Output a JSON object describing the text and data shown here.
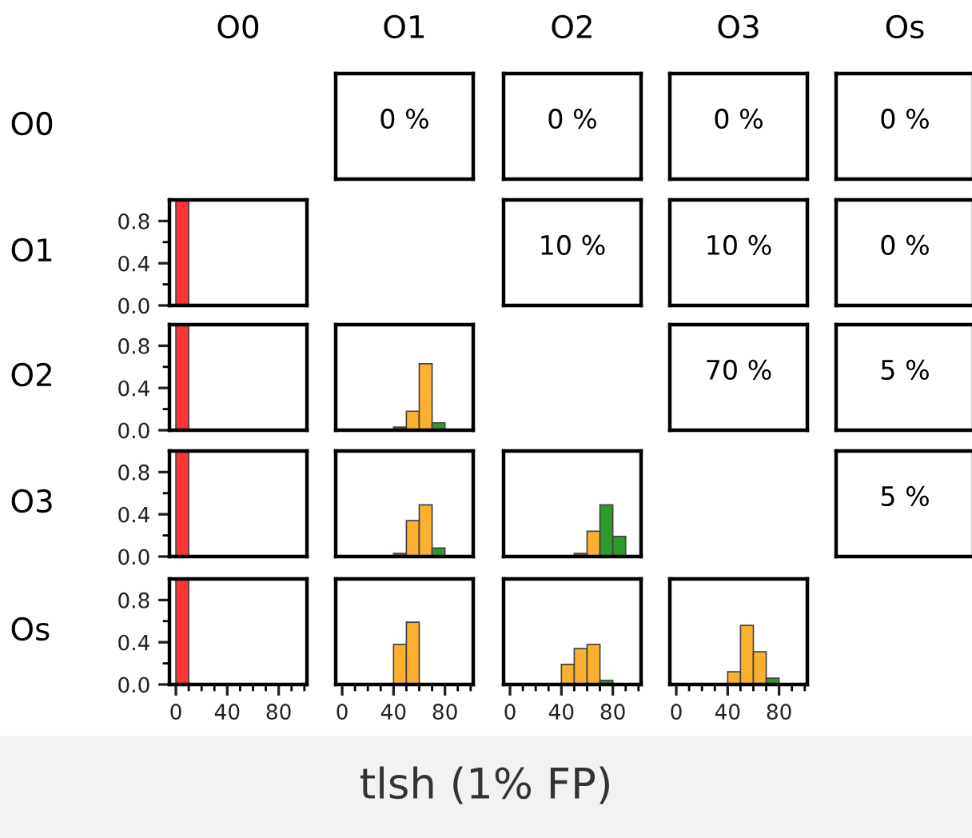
{
  "chart_data": [
    {
      "type": "other",
      "title": "O0",
      "ylabel": "O0"
    },
    {
      "type": "other",
      "title": "O1",
      "annotations": [
        "0 %"
      ]
    },
    {
      "type": "other",
      "title": "O2",
      "annotations": [
        "0 %"
      ]
    },
    {
      "type": "other",
      "title": "O3",
      "annotations": [
        "0 %"
      ]
    },
    {
      "type": "other",
      "title": "Os",
      "annotations": [
        "0 %"
      ]
    },
    {
      "type": "histogram",
      "ylabel": "O1",
      "bins": [
        0,
        10
      ],
      "values": [
        1.0
      ],
      "colors": [
        "#ff3535"
      ],
      "xlim": [
        -5,
        102
      ],
      "ylim": [
        0,
        1.0
      ],
      "yticks": [
        {
          "value": 0,
          "label": "0.0"
        },
        {
          "value": 0.2,
          "label": null
        },
        {
          "value": 0.4,
          "label": "0.4"
        },
        {
          "value": 0.6,
          "label": null
        },
        {
          "value": 0.8,
          "label": "0.8"
        }
      ],
      "tick_labels": "y"
    },
    {
      "type": "other",
      "annotations": [
        "10 %"
      ]
    },
    {
      "type": "other",
      "annotations": [
        "10 %"
      ]
    },
    {
      "type": "other",
      "annotations": [
        "0 %"
      ]
    },
    {
      "type": "histogram",
      "ylabel": "O2",
      "bins": [
        0,
        10
      ],
      "values": [
        1.0
      ],
      "colors": [
        "#ff3535"
      ],
      "xlim": [
        -5,
        102
      ],
      "ylim": [
        0,
        1.0
      ],
      "yticks": [
        {
          "value": 0,
          "label": "0.0"
        },
        {
          "value": 0.2,
          "label": null
        },
        {
          "value": 0.4,
          "label": "0.4"
        },
        {
          "value": 0.6,
          "label": null
        },
        {
          "value": 0.8,
          "label": "0.8"
        }
      ],
      "tick_labels": "y"
    },
    {
      "type": "histogram",
      "bins": [
        40,
        50,
        60,
        70,
        80
      ],
      "values": [
        0.03,
        0.18,
        0.63,
        0.07
      ],
      "colors": [
        "#7b5a1c",
        "#fbb12f",
        "#fbb12f",
        "#2e9a2e"
      ],
      "xlim": [
        -5,
        102
      ],
      "ylim": [
        0,
        1.0
      ],
      "tick_labels": false
    },
    {
      "type": "other",
      "annotations": [
        "70 %"
      ]
    },
    {
      "type": "other",
      "annotations": [
        "5 %"
      ]
    },
    {
      "type": "histogram",
      "ylabel": "O3",
      "bins": [
        0,
        10
      ],
      "values": [
        1.0
      ],
      "colors": [
        "#ff3535"
      ],
      "xlim": [
        -5,
        102
      ],
      "ylim": [
        0,
        1.0
      ],
      "yticks": [
        {
          "value": 0,
          "label": "0.0"
        },
        {
          "value": 0.2,
          "label": null
        },
        {
          "value": 0.4,
          "label": "0.4"
        },
        {
          "value": 0.6,
          "label": null
        },
        {
          "value": 0.8,
          "label": "0.8"
        }
      ],
      "tick_labels": "y"
    },
    {
      "type": "histogram",
      "bins": [
        40,
        50,
        60,
        70,
        80
      ],
      "values": [
        0.03,
        0.34,
        0.49,
        0.08
      ],
      "colors": [
        "#7b5a1c",
        "#fbb12f",
        "#fbb12f",
        "#2e9a2e"
      ],
      "xlim": [
        -5,
        102
      ],
      "ylim": [
        0,
        1.0
      ],
      "tick_labels": false
    },
    {
      "type": "histogram",
      "bins": [
        50,
        60,
        70,
        80,
        90
      ],
      "values": [
        0.03,
        0.24,
        0.49,
        0.19
      ],
      "colors": [
        "#7b5a1c",
        "#fbb12f",
        "#2e9a2e",
        "#2e9a2e"
      ],
      "xlim": [
        -5,
        102
      ],
      "ylim": [
        0,
        1.0
      ],
      "tick_labels": false
    },
    {
      "type": "other",
      "annotations": [
        "5 %"
      ]
    },
    {
      "type": "histogram",
      "ylabel": "Os",
      "bins": [
        0,
        10
      ],
      "values": [
        1.0
      ],
      "colors": [
        "#ff3535"
      ],
      "xlim": [
        -5,
        102
      ],
      "ylim": [
        0,
        1.0
      ],
      "xticks": [
        0,
        {
          "value": 10,
          "label": null
        },
        {
          "value": 20,
          "label": null
        },
        {
          "value": 30,
          "label": null
        },
        40,
        {
          "value": 50,
          "label": null
        },
        {
          "value": 60,
          "label": null
        },
        {
          "value": 70,
          "label": null
        },
        80,
        {
          "value": 90,
          "label": null
        },
        {
          "value": 100,
          "label": null
        }
      ],
      "yticks": [
        {
          "value": 0,
          "label": "0.0"
        },
        {
          "value": 0.2,
          "label": null
        },
        {
          "value": 0.4,
          "label": "0.4"
        },
        {
          "value": 0.6,
          "label": null
        },
        {
          "value": 0.8,
          "label": "0.8"
        }
      ]
    },
    {
      "type": "histogram",
      "bins": [
        40,
        50,
        60
      ],
      "values": [
        0.38,
        0.59
      ],
      "colors": [
        "#fbb12f",
        "#fbb12f"
      ],
      "xlim": [
        -5,
        102
      ],
      "ylim": [
        0,
        1.0
      ],
      "xticks": [
        0,
        {
          "value": 10,
          "label": null
        },
        {
          "value": 20,
          "label": null
        },
        {
          "value": 30,
          "label": null
        },
        40,
        {
          "value": 50,
          "label": null
        },
        {
          "value": 60,
          "label": null
        },
        {
          "value": 70,
          "label": null
        },
        80,
        {
          "value": 90,
          "label": null
        },
        {
          "value": 100,
          "label": null
        }
      ],
      "tick_labels": "x"
    },
    {
      "type": "histogram",
      "bins": [
        40,
        50,
        60,
        70,
        80
      ],
      "values": [
        0.19,
        0.34,
        0.38,
        0.04
      ],
      "colors": [
        "#fbb12f",
        "#fbb12f",
        "#fbb12f",
        "#2e9a2e"
      ],
      "xlim": [
        -5,
        102
      ],
      "ylim": [
        0,
        1.0
      ],
      "xticks": [
        0,
        {
          "value": 10,
          "label": null
        },
        {
          "value": 20,
          "label": null
        },
        {
          "value": 30,
          "label": null
        },
        40,
        {
          "value": 50,
          "label": null
        },
        {
          "value": 60,
          "label": null
        },
        {
          "value": 70,
          "label": null
        },
        80,
        {
          "value": 90,
          "label": null
        },
        {
          "value": 100,
          "label": null
        }
      ],
      "tick_labels": "x"
    },
    {
      "type": "histogram",
      "bins": [
        40,
        50,
        60,
        70,
        80
      ],
      "values": [
        0.12,
        0.56,
        0.31,
        0.06
      ],
      "colors": [
        "#fbb12f",
        "#fbb12f",
        "#fbb12f",
        "#2e9a2e"
      ],
      "xlim": [
        -5,
        102
      ],
      "ylim": [
        0,
        1.0
      ],
      "xticks": [
        0,
        {
          "value": 10,
          "label": null
        },
        {
          "value": 20,
          "label": null
        },
        {
          "value": 30,
          "label": null
        },
        40,
        {
          "value": 50,
          "label": null
        },
        {
          "value": 60,
          "label": null
        },
        {
          "value": 70,
          "label": null
        },
        80,
        {
          "value": 90,
          "label": null
        },
        {
          "value": 100,
          "label": null
        }
      ],
      "tick_labels": "x"
    },
    {
      "type": "other",
      "title": "tlsh (1% FP)"
    }
  ]
}
